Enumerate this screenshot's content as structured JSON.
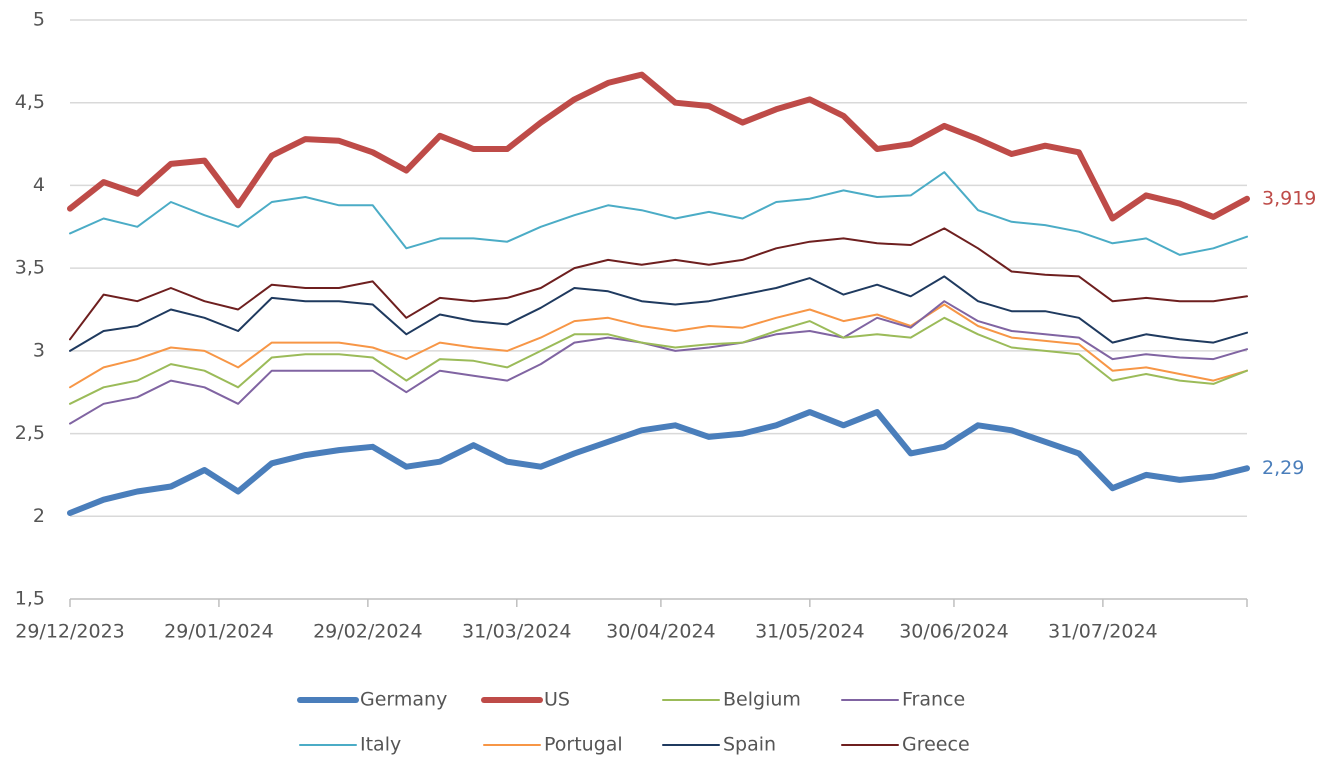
{
  "chart_data": {
    "type": "line",
    "x": [
      "2023-12-29",
      "2024-01-05",
      "2024-01-12",
      "2024-01-19",
      "2024-01-26",
      "2024-02-02",
      "2024-02-09",
      "2024-02-16",
      "2024-02-23",
      "2024-03-01",
      "2024-03-08",
      "2024-03-15",
      "2024-03-22",
      "2024-03-29",
      "2024-04-05",
      "2024-04-12",
      "2024-04-19",
      "2024-04-26",
      "2024-05-03",
      "2024-05-10",
      "2024-05-17",
      "2024-05-24",
      "2024-05-31",
      "2024-06-07",
      "2024-06-14",
      "2024-06-21",
      "2024-06-28",
      "2024-07-05",
      "2024-07-12",
      "2024-07-19",
      "2024-07-26",
      "2024-08-02",
      "2024-08-09",
      "2024-08-16",
      "2024-08-23",
      "2024-08-30"
    ],
    "xlim": [
      "2023-12-29",
      "2024-08-30"
    ],
    "xticks": [
      {
        "value": "2023-12-29",
        "label": "29/12/2023"
      },
      {
        "value": "2024-01-29",
        "label": "29/01/2024"
      },
      {
        "value": "2024-02-29",
        "label": "29/02/2024"
      },
      {
        "value": "2024-03-31",
        "label": "31/03/2024"
      },
      {
        "value": "2024-04-30",
        "label": "30/04/2024"
      },
      {
        "value": "2024-05-31",
        "label": "31/05/2024"
      },
      {
        "value": "2024-06-30",
        "label": "30/06/2024"
      },
      {
        "value": "2024-07-31",
        "label": "31/07/2024"
      }
    ],
    "ylim": [
      1.5,
      5
    ],
    "yticks": [
      {
        "value": 1.5,
        "label": "1,5"
      },
      2,
      {
        "value": 2.5,
        "label": "2,5"
      },
      3,
      {
        "value": 3.5,
        "label": "3,5"
      },
      4,
      {
        "value": 4.5,
        "label": "4,5"
      },
      5
    ],
    "grid": true,
    "legend": "bottom",
    "series": [
      {
        "name": "Germany",
        "color": "#4a7ebb",
        "line_width": 6,
        "end_label": "2,29",
        "values": [
          2.02,
          2.1,
          2.15,
          2.18,
          2.28,
          2.15,
          2.32,
          2.37,
          2.4,
          2.42,
          2.3,
          2.33,
          2.43,
          2.33,
          2.3,
          2.38,
          2.45,
          2.52,
          2.55,
          2.48,
          2.5,
          2.55,
          2.63,
          2.55,
          2.63,
          2.38,
          2.42,
          2.55,
          2.52,
          2.45,
          2.38,
          2.17,
          2.25,
          2.22,
          2.24,
          2.29
        ]
      },
      {
        "name": "US",
        "color": "#be4b48",
        "line_width": 6,
        "end_label": "3,919",
        "values": [
          3.86,
          4.02,
          3.95,
          4.13,
          4.15,
          3.88,
          4.18,
          4.28,
          4.27,
          4.2,
          4.09,
          4.3,
          4.22,
          4.22,
          4.38,
          4.52,
          4.62,
          4.67,
          4.5,
          4.48,
          4.38,
          4.46,
          4.52,
          4.42,
          4.22,
          4.25,
          4.36,
          4.28,
          4.19,
          4.24,
          4.2,
          3.8,
          3.94,
          3.89,
          3.81,
          3.919
        ]
      },
      {
        "name": "Belgium",
        "color": "#9bbb59",
        "line_width": 2,
        "values": [
          2.68,
          2.78,
          2.82,
          2.92,
          2.88,
          2.78,
          2.96,
          2.98,
          2.98,
          2.96,
          2.82,
          2.95,
          2.94,
          2.9,
          3.0,
          3.1,
          3.1,
          3.05,
          3.02,
          3.04,
          3.05,
          3.12,
          3.18,
          3.08,
          3.1,
          3.08,
          3.2,
          3.1,
          3.02,
          3.0,
          2.98,
          2.82,
          2.86,
          2.82,
          2.8,
          2.88
        ]
      },
      {
        "name": "France",
        "color": "#8064a2",
        "line_width": 2,
        "values": [
          2.56,
          2.68,
          2.72,
          2.82,
          2.78,
          2.68,
          2.88,
          2.88,
          2.88,
          2.88,
          2.75,
          2.88,
          2.85,
          2.82,
          2.92,
          3.05,
          3.08,
          3.05,
          3.0,
          3.02,
          3.05,
          3.1,
          3.12,
          3.08,
          3.2,
          3.14,
          3.3,
          3.18,
          3.12,
          3.1,
          3.08,
          2.95,
          2.98,
          2.96,
          2.95,
          3.01
        ]
      },
      {
        "name": "Italy",
        "color": "#4bacc6",
        "line_width": 2,
        "values": [
          3.71,
          3.8,
          3.75,
          3.9,
          3.82,
          3.75,
          3.9,
          3.93,
          3.88,
          3.88,
          3.62,
          3.68,
          3.68,
          3.66,
          3.75,
          3.82,
          3.88,
          3.85,
          3.8,
          3.84,
          3.8,
          3.9,
          3.92,
          3.97,
          3.93,
          3.94,
          4.08,
          3.85,
          3.78,
          3.76,
          3.72,
          3.65,
          3.68,
          3.58,
          3.62,
          3.69
        ]
      },
      {
        "name": "Portugal",
        "color": "#f79646",
        "line_width": 2,
        "values": [
          2.78,
          2.9,
          2.95,
          3.02,
          3.0,
          2.9,
          3.05,
          3.05,
          3.05,
          3.02,
          2.95,
          3.05,
          3.02,
          3.0,
          3.08,
          3.18,
          3.2,
          3.15,
          3.12,
          3.15,
          3.14,
          3.2,
          3.25,
          3.18,
          3.22,
          3.15,
          3.28,
          3.15,
          3.08,
          3.06,
          3.04,
          2.88,
          2.9,
          2.86,
          2.82,
          2.88
        ]
      },
      {
        "name": "Spain",
        "color": "#1f3a5f",
        "line_width": 2,
        "values": [
          3.0,
          3.12,
          3.15,
          3.25,
          3.2,
          3.12,
          3.32,
          3.3,
          3.3,
          3.28,
          3.1,
          3.22,
          3.18,
          3.16,
          3.26,
          3.38,
          3.36,
          3.3,
          3.28,
          3.3,
          3.34,
          3.38,
          3.44,
          3.34,
          3.4,
          3.33,
          3.45,
          3.3,
          3.24,
          3.24,
          3.2,
          3.05,
          3.1,
          3.07,
          3.05,
          3.11
        ]
      },
      {
        "name": "Greece",
        "color": "#6e1f1f",
        "line_width": 2,
        "values": [
          3.07,
          3.34,
          3.3,
          3.38,
          3.3,
          3.25,
          3.4,
          3.38,
          3.38,
          3.42,
          3.2,
          3.32,
          3.3,
          3.32,
          3.38,
          3.5,
          3.55,
          3.52,
          3.55,
          3.52,
          3.55,
          3.62,
          3.66,
          3.68,
          3.65,
          3.64,
          3.74,
          3.62,
          3.48,
          3.46,
          3.45,
          3.3,
          3.32,
          3.3,
          3.3,
          3.33
        ]
      }
    ]
  }
}
